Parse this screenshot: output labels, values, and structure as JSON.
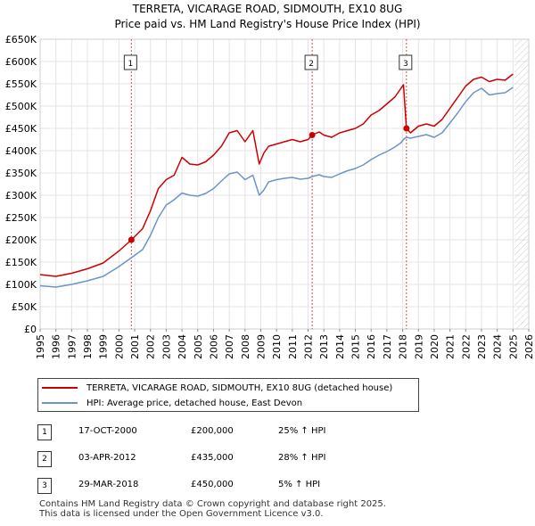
{
  "title": "TERRETA, VICARAGE ROAD, SIDMOUTH, EX10 8UG",
  "subtitle": "Price paid vs. HM Land Registry's House Price Index (HPI)",
  "colors": {
    "property": "#cc0000",
    "hpi": "#6a95c8",
    "grid": "#e4e4e4",
    "hatch": "#cccccc"
  },
  "chart_data": {
    "type": "line",
    "xlim": [
      1995,
      2026
    ],
    "ylim": [
      0,
      650000
    ],
    "y_ticks": [
      0,
      50000,
      100000,
      150000,
      200000,
      250000,
      300000,
      350000,
      400000,
      450000,
      500000,
      550000,
      600000,
      650000
    ],
    "y_tick_labels": [
      "£0",
      "£50K",
      "£100K",
      "£150K",
      "£200K",
      "£250K",
      "£300K",
      "£350K",
      "£400K",
      "£450K",
      "£500K",
      "£550K",
      "£600K",
      "£650K"
    ],
    "x_tick_labels": [
      "1995",
      "1996",
      "1997",
      "1998",
      "1999",
      "2000",
      "2001",
      "2002",
      "2003",
      "2004",
      "2005",
      "2006",
      "2007",
      "2008",
      "2009",
      "2010",
      "2011",
      "2012",
      "2013",
      "2014",
      "2015",
      "2016",
      "2017",
      "2018",
      "2019",
      "2020",
      "2021",
      "2022",
      "2023",
      "2024",
      "2025",
      "2026"
    ],
    "projection_start": 2025.1,
    "series": [
      {
        "name": "TERRETA, VICARAGE ROAD, SIDMOUTH, EX10 8UG (detached house)",
        "x": [
          1995.0,
          1996.0,
          1997.0,
          1998.0,
          1999.0,
          2000.0,
          2000.79,
          2001.5,
          2002.0,
          2002.5,
          2003.0,
          2003.5,
          2004.0,
          2004.5,
          2005.0,
          2005.5,
          2006.0,
          2006.5,
          2007.0,
          2007.5,
          2008.0,
          2008.5,
          2008.9,
          2009.2,
          2009.5,
          2010.0,
          2010.5,
          2011.0,
          2011.5,
          2012.0,
          2012.26,
          2012.7,
          2013.0,
          2013.5,
          2014.0,
          2014.5,
          2015.0,
          2015.5,
          2016.0,
          2016.5,
          2017.0,
          2017.5,
          2017.9,
          2018.05,
          2018.24,
          2018.5,
          2019.0,
          2019.5,
          2020.0,
          2020.5,
          2021.0,
          2021.5,
          2022.0,
          2022.5,
          2023.0,
          2023.5,
          2024.0,
          2024.5,
          2025.0
        ],
        "y": [
          122000,
          118000,
          125000,
          135000,
          148000,
          175000,
          200000,
          225000,
          265000,
          315000,
          335000,
          345000,
          385000,
          370000,
          368000,
          375000,
          390000,
          410000,
          440000,
          445000,
          420000,
          445000,
          370000,
          395000,
          410000,
          415000,
          420000,
          425000,
          420000,
          425000,
          435000,
          442000,
          435000,
          430000,
          440000,
          445000,
          450000,
          460000,
          480000,
          490000,
          505000,
          520000,
          540000,
          548000,
          450000,
          440000,
          455000,
          460000,
          455000,
          470000,
          495000,
          520000,
          545000,
          560000,
          565000,
          555000,
          560000,
          558000,
          572000
        ]
      },
      {
        "name": "HPI: Average price, detached house, East Devon",
        "x": [
          1995.0,
          1996.0,
          1997.0,
          1998.0,
          1999.0,
          2000.0,
          2000.79,
          2001.5,
          2002.0,
          2002.5,
          2003.0,
          2003.5,
          2004.0,
          2004.5,
          2005.0,
          2005.5,
          2006.0,
          2006.5,
          2007.0,
          2007.5,
          2008.0,
          2008.5,
          2008.9,
          2009.2,
          2009.5,
          2010.0,
          2010.5,
          2011.0,
          2011.5,
          2012.0,
          2012.26,
          2012.7,
          2013.0,
          2013.5,
          2014.0,
          2014.5,
          2015.0,
          2015.5,
          2016.0,
          2016.5,
          2017.0,
          2017.5,
          2017.9,
          2018.05,
          2018.24,
          2018.5,
          2019.0,
          2019.5,
          2020.0,
          2020.5,
          2021.0,
          2021.5,
          2022.0,
          2022.5,
          2023.0,
          2023.5,
          2024.0,
          2024.5,
          2025.0
        ],
        "y": [
          97000,
          94000,
          100000,
          108000,
          118000,
          140000,
          160000,
          178000,
          210000,
          250000,
          278000,
          290000,
          305000,
          300000,
          298000,
          304000,
          315000,
          332000,
          348000,
          352000,
          335000,
          345000,
          300000,
          312000,
          330000,
          335000,
          338000,
          340000,
          336000,
          338000,
          342000,
          346000,
          342000,
          340000,
          348000,
          355000,
          360000,
          368000,
          380000,
          390000,
          398000,
          408000,
          418000,
          425000,
          430000,
          428000,
          432000,
          436000,
          430000,
          440000,
          462000,
          485000,
          510000,
          530000,
          540000,
          525000,
          528000,
          530000,
          542000
        ]
      }
    ],
    "sales": [
      {
        "num": "1",
        "x": 2000.79,
        "y": 200000,
        "date": "17-OCT-2000",
        "price": "£200,000",
        "hpi_change": "25% ↑ HPI"
      },
      {
        "num": "2",
        "x": 2012.26,
        "y": 435000,
        "date": "03-APR-2012",
        "price": "£435,000",
        "hpi_change": "28% ↑ HPI"
      },
      {
        "num": "3",
        "x": 2018.24,
        "y": 450000,
        "date": "29-MAR-2018",
        "price": "£450,000",
        "hpi_change": "5% ↑ HPI"
      }
    ]
  },
  "legend": {
    "property_label": "TERRETA, VICARAGE ROAD, SIDMOUTH, EX10 8UG (detached house)",
    "hpi_label": "HPI: Average price, detached house, East Devon"
  },
  "footer": {
    "line1": "Contains HM Land Registry data © Crown copyright and database right 2025.",
    "line2": "This data is licensed under the Open Government Licence v3.0."
  }
}
